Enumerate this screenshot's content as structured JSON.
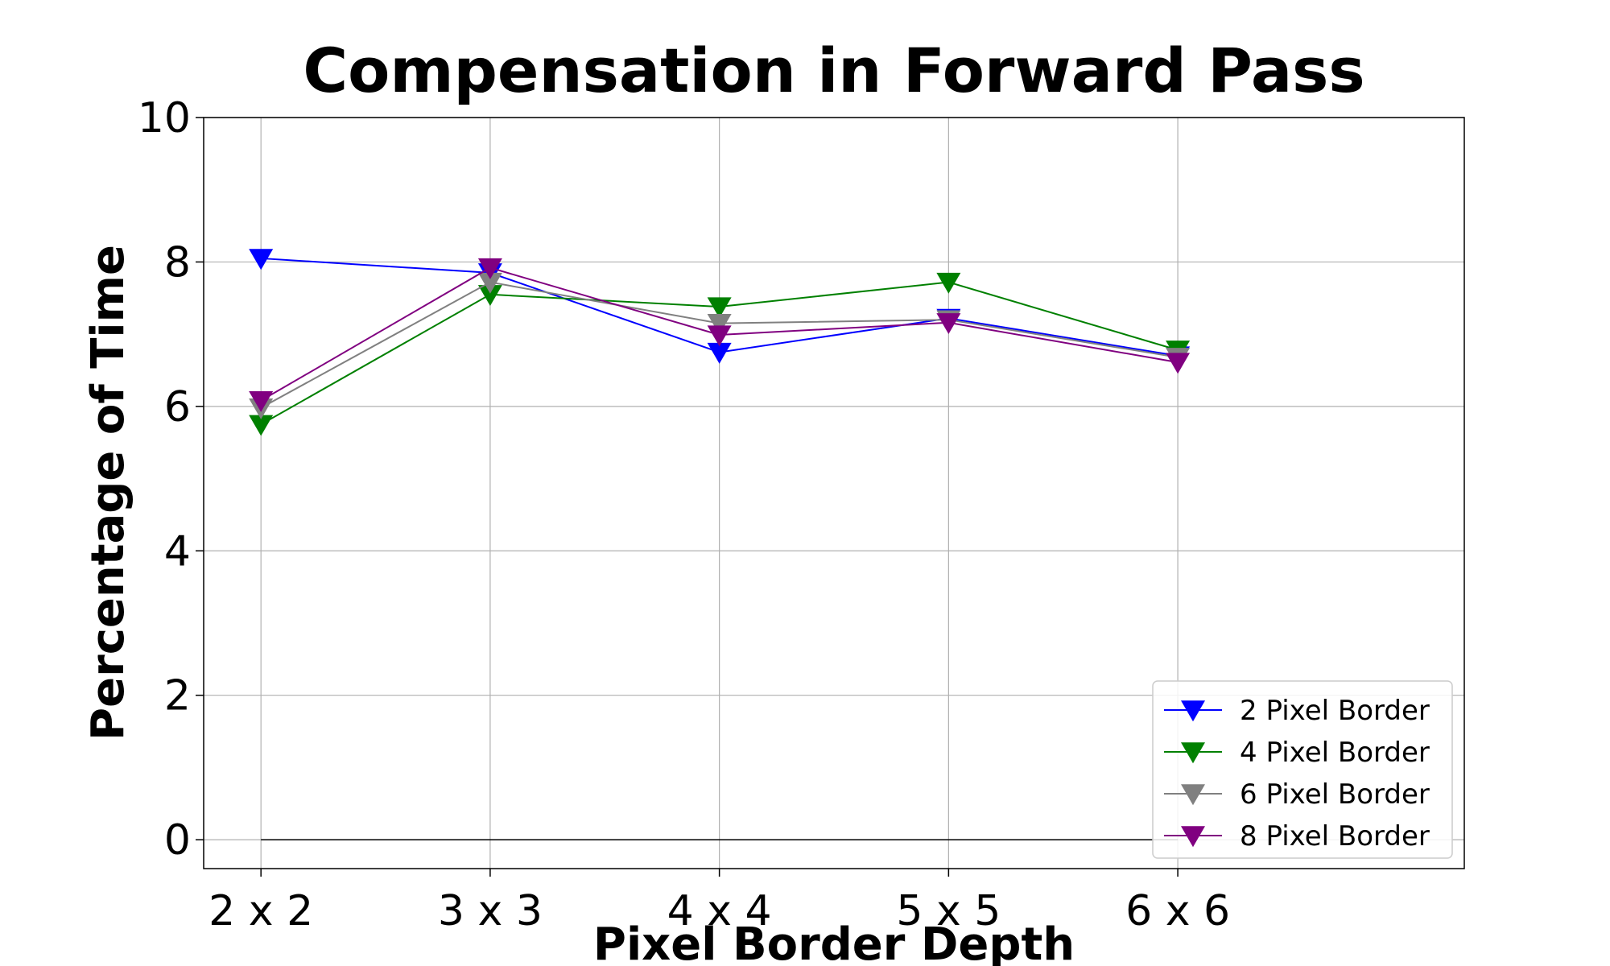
{
  "chart_data": {
    "type": "line",
    "title": "Compensation in Forward Pass",
    "xlabel": "Pixel Border Depth",
    "ylabel": "Percentage of Time",
    "categories": [
      "2 x 2",
      "3 x 3",
      "4 x 4",
      "5 x 5",
      "6 x 6"
    ],
    "xlim": [
      -0.25,
      5.25
    ],
    "ylim": [
      -0.4,
      10
    ],
    "yticks": [
      "0",
      "2",
      "4",
      "6",
      "8",
      "10"
    ],
    "grid": true,
    "legend_position": "lower-right",
    "baseline": 0,
    "series": [
      {
        "name": "2 Pixel Border",
        "color": "#0000ff",
        "marker": "triangle-down",
        "values": [
          8.05,
          7.85,
          6.75,
          7.22,
          6.7
        ]
      },
      {
        "name": "4 Pixel Border",
        "color": "#008000",
        "marker": "triangle-down",
        "values": [
          5.75,
          7.55,
          7.38,
          7.72,
          6.78
        ]
      },
      {
        "name": "6 Pixel Border",
        "color": "#808080",
        "marker": "triangle-down",
        "values": [
          5.98,
          7.72,
          7.15,
          7.2,
          6.68
        ]
      },
      {
        "name": "8 Pixel Border",
        "color": "#800080",
        "marker": "triangle-down",
        "values": [
          6.08,
          7.92,
          6.99,
          7.16,
          6.61
        ]
      }
    ]
  }
}
